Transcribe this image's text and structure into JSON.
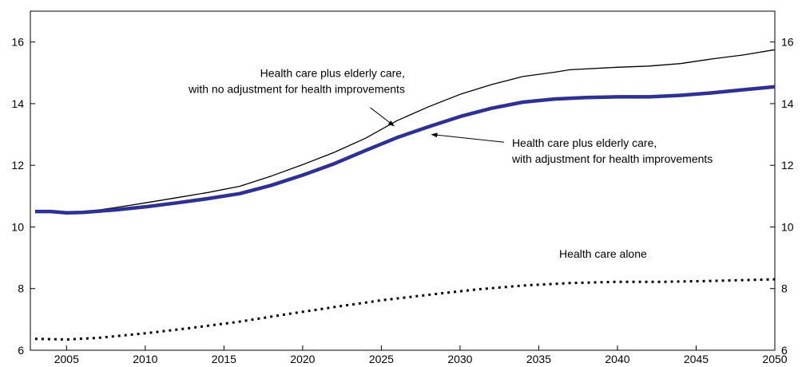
{
  "chart_data": {
    "type": "line",
    "xlim": [
      2002.7,
      2050
    ],
    "ylim": [
      6,
      17
    ],
    "x_ticks": [
      2005,
      2010,
      2015,
      2020,
      2025,
      2030,
      2035,
      2040,
      2045,
      2050
    ],
    "y_ticks": [
      6,
      8,
      10,
      12,
      14,
      16
    ],
    "x_tick_labels": [
      "2005",
      "2010",
      "2015",
      "2020",
      "2025",
      "2030",
      "2035",
      "2040",
      "2045",
      "2050"
    ],
    "y_tick_labels": [
      "6",
      "8",
      "10",
      "12",
      "14",
      "16"
    ],
    "grid": false,
    "series": [
      {
        "id": "no_adjustment",
        "style": "thin-solid",
        "color": "#000000",
        "x": [
          2003,
          2004,
          2005,
          2006,
          2008,
          2010,
          2012,
          2014,
          2016,
          2018,
          2020,
          2022,
          2024,
          2026,
          2028,
          2030,
          2032,
          2034,
          2036,
          2037,
          2040,
          2042,
          2044,
          2046,
          2048,
          2050
        ],
        "values": [
          10.5,
          10.5,
          10.46,
          10.48,
          10.62,
          10.78,
          10.95,
          11.12,
          11.32,
          11.65,
          12.02,
          12.42,
          12.88,
          13.45,
          13.9,
          14.3,
          14.62,
          14.88,
          15.02,
          15.1,
          15.18,
          15.22,
          15.3,
          15.45,
          15.58,
          15.75
        ]
      },
      {
        "id": "with_adjustment",
        "style": "thick-solid",
        "color": "#2e3192",
        "x": [
          2003,
          2004,
          2005,
          2006,
          2008,
          2010,
          2012,
          2014,
          2016,
          2018,
          2020,
          2022,
          2024,
          2026,
          2028,
          2030,
          2032,
          2034,
          2036,
          2038,
          2040,
          2042,
          2044,
          2046,
          2048,
          2050
        ],
        "values": [
          10.5,
          10.5,
          10.46,
          10.47,
          10.55,
          10.65,
          10.78,
          10.92,
          11.08,
          11.35,
          11.68,
          12.05,
          12.48,
          12.9,
          13.25,
          13.58,
          13.85,
          14.05,
          14.15,
          14.2,
          14.22,
          14.22,
          14.27,
          14.35,
          14.45,
          14.55
        ]
      },
      {
        "id": "health_care_alone",
        "style": "dotted",
        "color": "#000000",
        "x": [
          2003,
          2005,
          2007,
          2010,
          2013,
          2016,
          2019,
          2022,
          2025,
          2028,
          2031,
          2034,
          2037,
          2040,
          2043,
          2046,
          2050
        ],
        "values": [
          6.37,
          6.35,
          6.4,
          6.55,
          6.73,
          6.93,
          7.17,
          7.4,
          7.62,
          7.8,
          7.97,
          8.1,
          8.18,
          8.22,
          8.22,
          8.25,
          8.3
        ]
      }
    ],
    "annotations": [
      {
        "id": "no_adj_label",
        "lines": [
          "Health care plus elderly care,",
          "with no adjustment for health improvements"
        ],
        "anchor": "end",
        "text_x": 2026.5,
        "text_y": 14.87,
        "arrow_from": [
          2024.3,
          13.87
        ],
        "arrow_to": [
          2025.8,
          13.28
        ]
      },
      {
        "id": "with_adj_label",
        "lines": [
          "Health care plus elderly care,",
          "with adjustment for health improvements"
        ],
        "anchor": "start",
        "text_x": 2033.3,
        "text_y": 12.6,
        "arrow_from": [
          2032.8,
          12.75
        ],
        "arrow_to": [
          2028.2,
          13.0
        ]
      },
      {
        "id": "health_alone_label",
        "lines": [
          "Health care alone"
        ],
        "anchor": "start",
        "text_x": 2036.3,
        "text_y": 9.0
      }
    ]
  }
}
